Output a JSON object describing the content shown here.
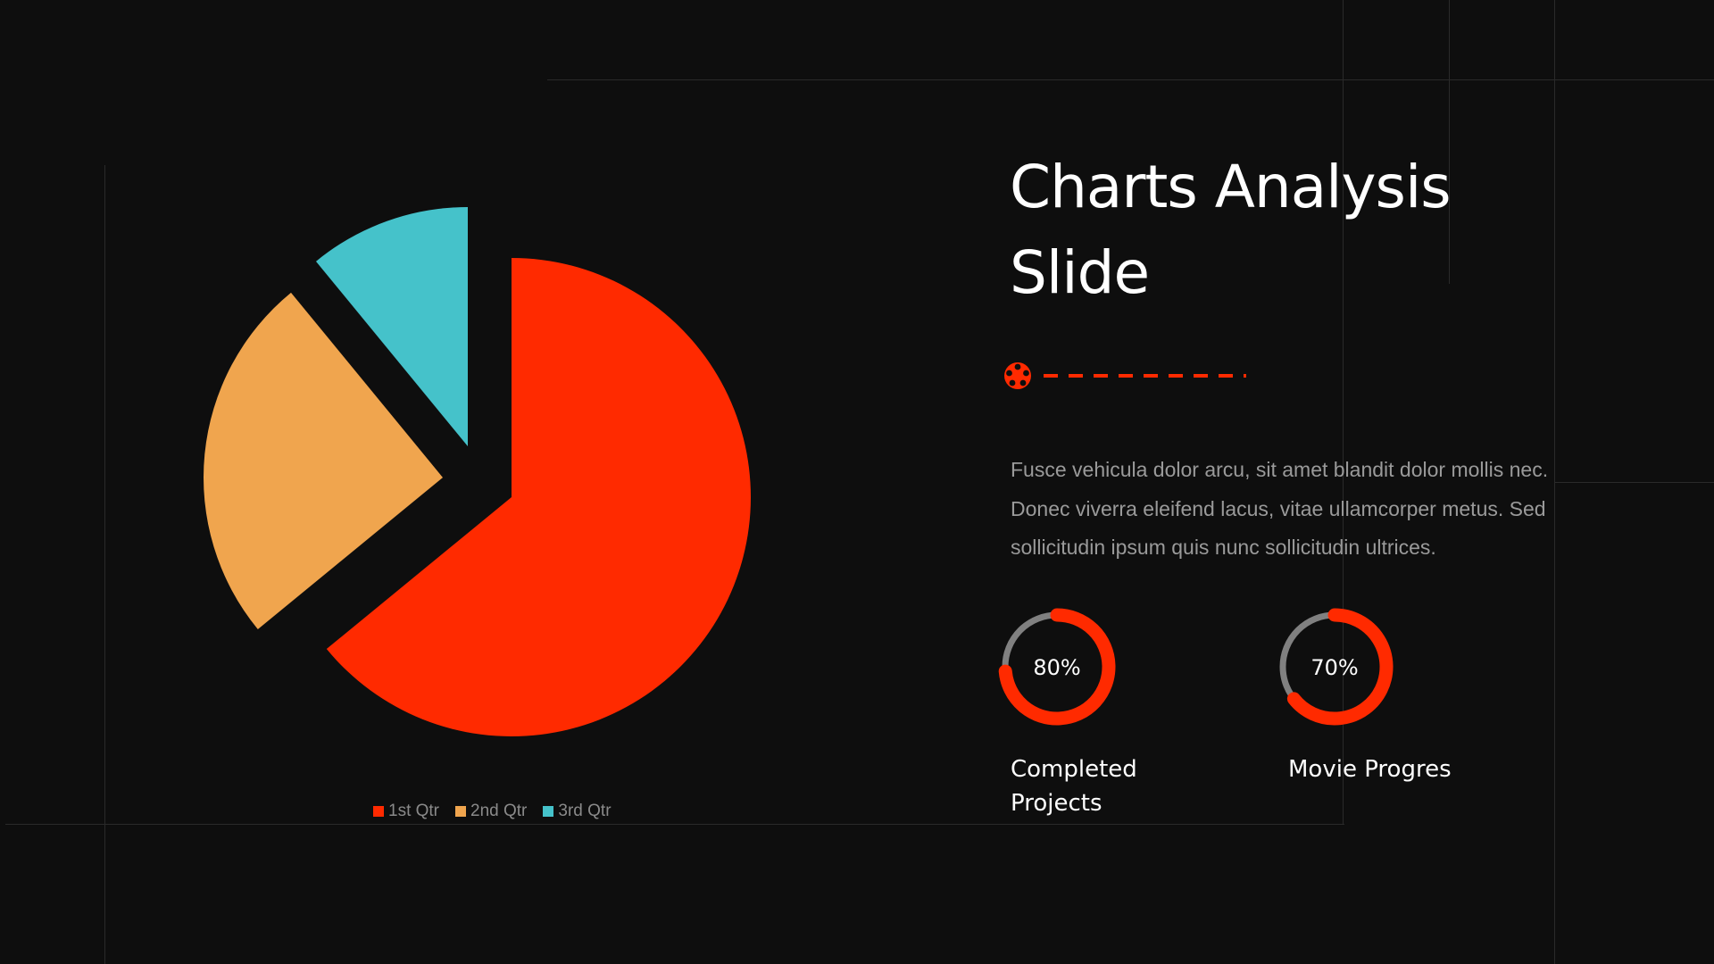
{
  "slide": {
    "title_line1": "Charts Analysis",
    "title_line2": "Slide",
    "body": "Fusce vehicula dolor arcu, sit amet blandit dolor mollis nec. Donec viverra eleifend lacus, vitae ullamcorper metus. Sed sollicitudin ipsum quis nunc sollicitudin ultrices.",
    "divider_icon": "film-reel-icon",
    "accent": "#ff2a00"
  },
  "stats": [
    {
      "value": 80,
      "label_text": "80%",
      "caption": "Completed Projects"
    },
    {
      "value": 70,
      "label_text": "70%",
      "caption": "Movie Progres"
    }
  ],
  "chart_data": {
    "type": "pie",
    "exploded": true,
    "categories": [
      "1st Qtr",
      "2nd Qtr",
      "3rd Qtr"
    ],
    "values": [
      8.2,
      3.2,
      1.4
    ],
    "colors": [
      "#ff2a00",
      "#f0a54e",
      "#45c2ca"
    ],
    "legend_position": "bottom"
  }
}
